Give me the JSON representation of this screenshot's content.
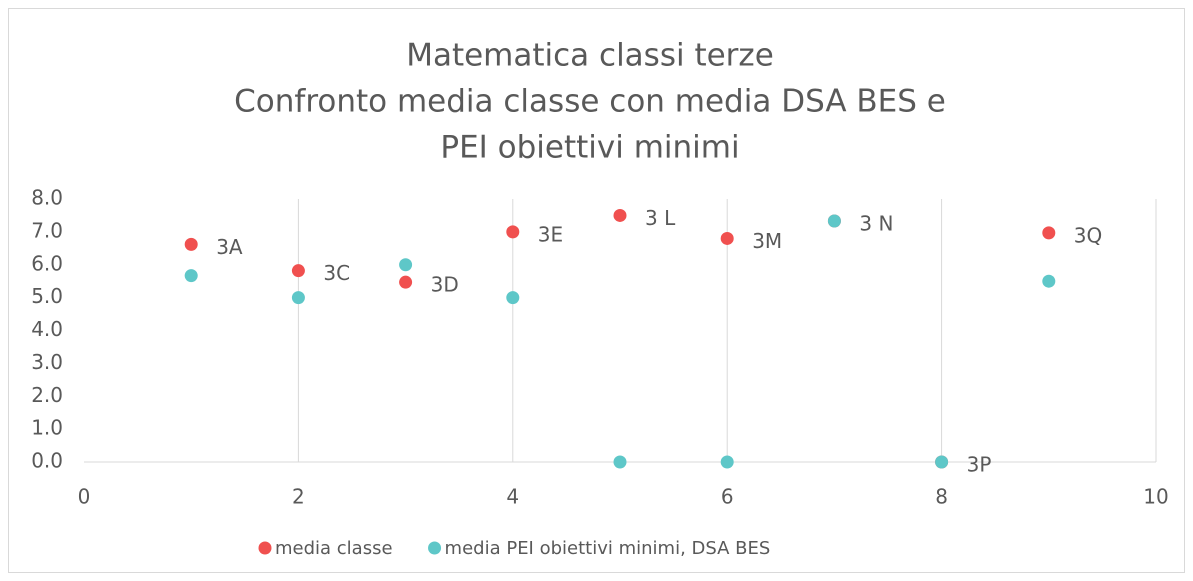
{
  "chart_data": {
    "type": "scatter",
    "title": [
      "Matematica classi terze",
      "Confronto media classe con media DSA BES e",
      "PEI obiettivi minimi"
    ],
    "xlim": [
      0,
      10
    ],
    "xticks": [
      0,
      2,
      4,
      6,
      8,
      10
    ],
    "ylim": [
      0,
      8
    ],
    "yticks": [
      {
        "value": 0,
        "label": "0.0"
      },
      {
        "value": 1,
        "label": "1.0"
      },
      {
        "value": 2,
        "label": "2.0"
      },
      {
        "value": 3,
        "label": "3.0"
      },
      {
        "value": 4,
        "label": "4.0"
      },
      {
        "value": 5,
        "label": "5.0"
      },
      {
        "value": 6,
        "label": "6.0"
      },
      {
        "value": 7,
        "label": "7.0"
      },
      {
        "value": 8,
        "label": "8.0"
      }
    ],
    "grid": "x",
    "legend": "bottom",
    "series": [
      {
        "name": "media classe",
        "color": "#f0504f",
        "x": [
          1,
          2,
          3,
          4,
          5,
          6,
          7,
          8,
          9
        ],
        "values": [
          6.62,
          5.82,
          5.47,
          7.0,
          7.5,
          6.8,
          7.33,
          0,
          6.97
        ],
        "point_labels": [
          "3A",
          "3C",
          "3D",
          "3E",
          "3 L",
          "3M",
          "3 N",
          "3P",
          "3Q"
        ]
      },
      {
        "name": "media PEI obiettivi minimi, DSA BES",
        "color": "#5ec7c8",
        "x": [
          1,
          2,
          3,
          4,
          5,
          6,
          7,
          8,
          9
        ],
        "values": [
          5.67,
          5.0,
          6.0,
          5.0,
          0,
          0,
          7.33,
          0,
          5.5
        ]
      }
    ]
  }
}
